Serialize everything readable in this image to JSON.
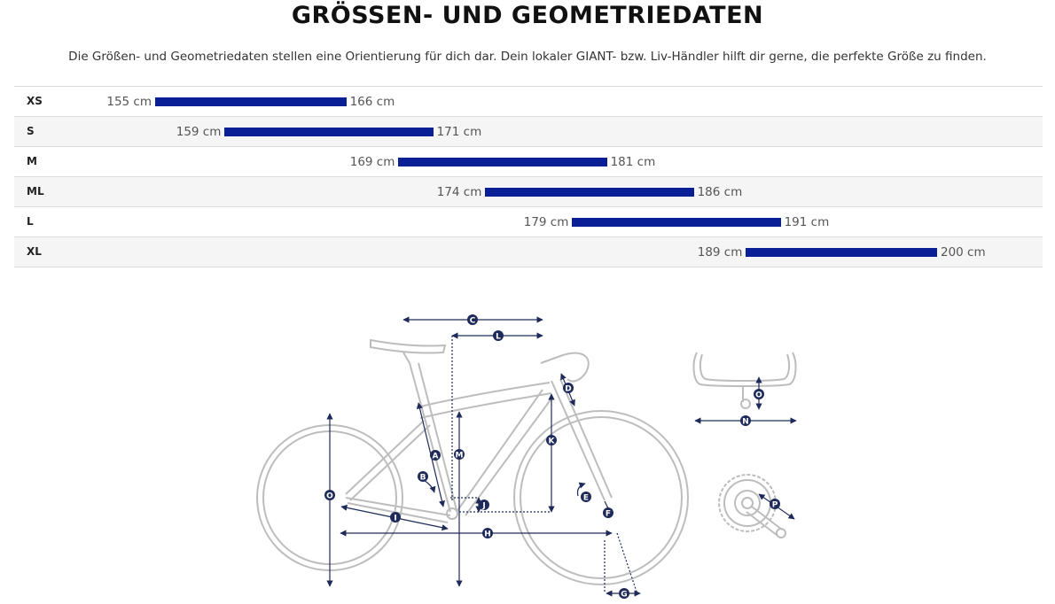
{
  "header": {
    "title": "GRÖSSEN- UND GEOMETRIEDATEN",
    "description": "Die Größen- und Geometriedaten stellen eine Orientierung für dich dar. Dein lokaler GIANT- bzw. Liv-Händler hilft dir gerne, die perfekte Größe zu finden."
  },
  "sizes": [
    {
      "label": "XS",
      "min": "155 cm",
      "max": "166 cm",
      "min_cm": 155,
      "max_cm": 166
    },
    {
      "label": "S",
      "min": "159 cm",
      "max": "171 cm",
      "min_cm": 159,
      "max_cm": 171
    },
    {
      "label": "M",
      "min": "169 cm",
      "max": "181 cm",
      "min_cm": 169,
      "max_cm": 181
    },
    {
      "label": "ML",
      "min": "174 cm",
      "max": "186 cm",
      "min_cm": 174,
      "max_cm": 186
    },
    {
      "label": "L",
      "min": "179 cm",
      "max": "191 cm",
      "min_cm": 179,
      "max_cm": 191
    },
    {
      "label": "XL",
      "min": "189 cm",
      "max": "200 cm",
      "min_cm": 189,
      "max_cm": 200
    }
  ],
  "colors": {
    "bar": "#0a1f96",
    "diagram_line": "#bdbdbd",
    "dimension": "#1e2a5a"
  },
  "geometry_labels": {
    "C": "C",
    "L": "L",
    "D": "D",
    "K": "K",
    "M": "M",
    "A": "A",
    "B": "B",
    "J": "J",
    "E": "E",
    "F": "F",
    "O": "O",
    "I": "I",
    "H": "H",
    "G": "G",
    "N": "N",
    "P": "P"
  }
}
